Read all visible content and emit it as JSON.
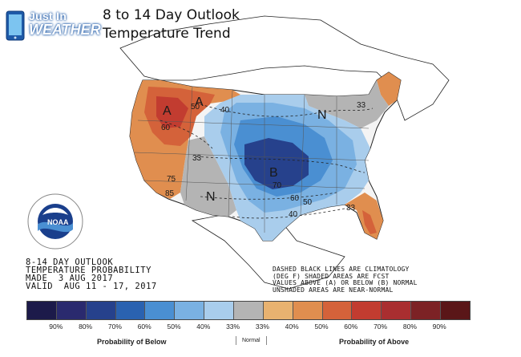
{
  "brand": {
    "line1": "Just In",
    "line2": "WEATHER"
  },
  "title": {
    "line1": "8 to 14 Day Outlook",
    "line2": "Temperature Trend"
  },
  "info": {
    "line1": "8-14 DAY OUTLOOK",
    "line2": "TEMPERATURE PROBABILITY",
    "line3": "MADE  3 AUG 2017",
    "line4": "VALID  AUG 11 - 17, 2017"
  },
  "notes": {
    "line1": "DASHED BLACK LINES ARE CLIMATOLOGY",
    "line2": "(DEG F) SHADED AREAS ARE FCST",
    "line3": "VALUES ABOVE (A) OR BELOW (B) NORMAL",
    "line4": "UNSHADED AREAS ARE NEAR-NORMAL"
  },
  "logo": {
    "text": "NOAA"
  },
  "map_labels": {
    "A_west": "A",
    "A_nw": "A",
    "B_center": "B",
    "N_sw": "N",
    "N_ne": "N",
    "v60": "60",
    "v40": "40",
    "v50": "50",
    "v33w": "33",
    "v75": "75",
    "v85": "85",
    "v70": "70",
    "v60c": "60",
    "v50c": "50",
    "v40c": "40",
    "v33ne": "33",
    "v33se": "33"
  },
  "legend": {
    "colors": [
      "#1c1a4a",
      "#2a2a6e",
      "#26418c",
      "#2a62b0",
      "#4a8fd2",
      "#7ab1e2",
      "#a9cdec",
      "#b4b4b4",
      "#e8b270",
      "#e08e4f",
      "#d4623a",
      "#c23c30",
      "#a92e30",
      "#7c2225",
      "#5a1618"
    ],
    "labels": [
      "90%",
      "80%",
      "70%",
      "60%",
      "50%",
      "40%",
      "33%",
      "33%",
      "40%",
      "50%",
      "60%",
      "70%",
      "80%",
      "90%"
    ],
    "below_caption": "Probability of Below",
    "normal_caption": "Normal",
    "above_caption": "Probability of Above"
  }
}
